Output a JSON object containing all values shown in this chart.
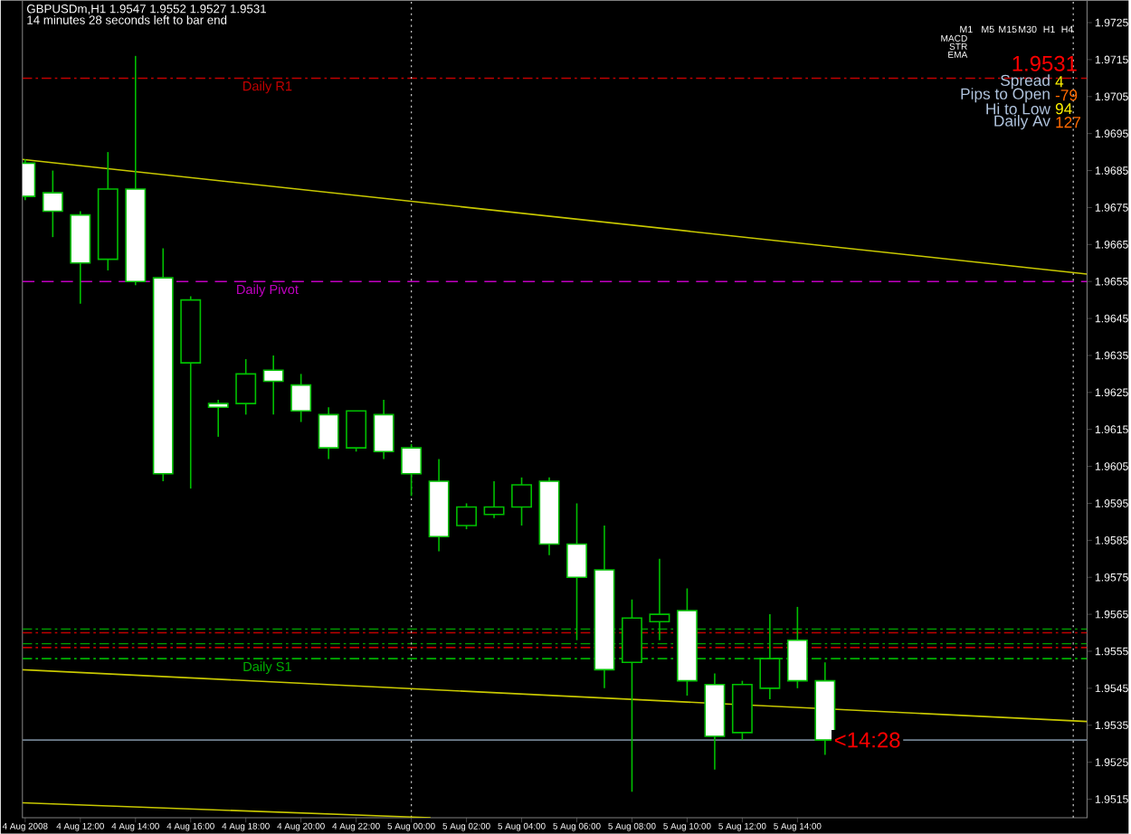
{
  "chart_data": {
    "type": "candlestick",
    "title": "GBPUSDm,H1  1.9547 1.9552 1.9527 1.9531",
    "subtitle": "14 minutes 28 seconds left to bar end",
    "color": "#00c000",
    "x": [
      "2008-08-04T10:00",
      "2008-08-04T11:00",
      "2008-08-04T12:00",
      "2008-08-04T13:00",
      "2008-08-04T14:00",
      "2008-08-04T15:00",
      "2008-08-04T16:00",
      "2008-08-04T17:00",
      "2008-08-04T18:00",
      "2008-08-04T19:00",
      "2008-08-04T20:00",
      "2008-08-04T21:00",
      "2008-08-04T22:00",
      "2008-08-04T23:00",
      "2008-08-05T00:00",
      "2008-08-05T01:00",
      "2008-08-05T02:00",
      "2008-08-05T03:00",
      "2008-08-05T04:00",
      "2008-08-05T05:00",
      "2008-08-05T06:00",
      "2008-08-05T07:00",
      "2008-08-05T08:00",
      "2008-08-05T09:00",
      "2008-08-05T10:00",
      "2008-08-05T11:00",
      "2008-08-05T12:00",
      "2008-08-05T13:00",
      "2008-08-05T14:00",
      "2008-08-05T15:00"
    ],
    "ohlc": [
      [
        1.9687,
        1.9688,
        1.9677,
        1.9678
      ],
      [
        1.9679,
        1.9685,
        1.9667,
        1.9674
      ],
      [
        1.9673,
        1.9674,
        1.9649,
        1.966
      ],
      [
        1.9661,
        1.969,
        1.9658,
        1.968
      ],
      [
        1.968,
        1.9716,
        1.9654,
        1.9655
      ],
      [
        1.9656,
        1.9664,
        1.9601,
        1.9603
      ],
      [
        1.9633,
        1.9651,
        1.9599,
        1.965
      ],
      [
        1.9622,
        1.9623,
        1.9613,
        1.9621
      ],
      [
        1.9622,
        1.9634,
        1.9619,
        1.963
      ],
      [
        1.9631,
        1.9635,
        1.9619,
        1.9628
      ],
      [
        1.9627,
        1.963,
        1.9617,
        1.962
      ],
      [
        1.9619,
        1.9621,
        1.9607,
        1.961
      ],
      [
        1.961,
        1.962,
        1.9609,
        1.962
      ],
      [
        1.9619,
        1.9623,
        1.9607,
        1.9609
      ],
      [
        1.961,
        1.9611,
        1.9597,
        1.9603
      ],
      [
        1.9601,
        1.9607,
        1.9582,
        1.9586
      ],
      [
        1.9589,
        1.9595,
        1.9588,
        1.9594
      ],
      [
        1.9592,
        1.9601,
        1.9591,
        1.9594
      ],
      [
        1.9594,
        1.9602,
        1.9589,
        1.96
      ],
      [
        1.9601,
        1.9602,
        1.9581,
        1.9584
      ],
      [
        1.9584,
        1.9595,
        1.9558,
        1.9575
      ],
      [
        1.9577,
        1.9589,
        1.9545,
        1.955
      ],
      [
        1.9552,
        1.9569,
        1.9517,
        1.9564
      ],
      [
        1.9563,
        1.958,
        1.9558,
        1.9565
      ],
      [
        1.9566,
        1.9572,
        1.9543,
        1.9547
      ],
      [
        1.9546,
        1.9549,
        1.9523,
        1.9532
      ],
      [
        1.9533,
        1.9547,
        1.9531,
        1.9546
      ],
      [
        1.9545,
        1.9565,
        1.9542,
        1.9553
      ],
      [
        1.9558,
        1.9567,
        1.9545,
        1.9547
      ],
      [
        1.9547,
        1.9552,
        1.9527,
        1.9531
      ]
    ],
    "series": [
      {
        "type": "line",
        "color": "#c8c800",
        "x": [
          "2008-08-04T09:54",
          "2008-08-06T00:30"
        ],
        "values": [
          1.9688,
          1.9657
        ]
      },
      {
        "type": "line",
        "color": "#c8c800",
        "x": [
          "2008-08-04T09:54",
          "2008-08-06T00:30"
        ],
        "values": [
          1.955,
          1.9536
        ]
      },
      {
        "type": "line",
        "color": "#c8c800",
        "x": [
          "2008-08-04T09:54",
          "2008-08-05T00:42"
        ],
        "values": [
          1.9514,
          1.951
        ]
      }
    ],
    "xlim": [
      "2008-08-04T09:54",
      "2008-08-06T00:30"
    ],
    "ylim": [
      1.951,
      1.9731
    ],
    "xticks": [
      {
        "value": "2008-08-04T10:00",
        "label": "4 Aug 2008"
      },
      {
        "value": "2008-08-04T12:00",
        "label": "4 Aug 12:00"
      },
      {
        "value": "2008-08-04T14:00",
        "label": "4 Aug 14:00"
      },
      {
        "value": "2008-08-04T16:00",
        "label": "4 Aug 16:00"
      },
      {
        "value": "2008-08-04T18:00",
        "label": "4 Aug 18:00"
      },
      {
        "value": "2008-08-04T20:00",
        "label": "4 Aug 20:00"
      },
      {
        "value": "2008-08-04T22:00",
        "label": "4 Aug 22:00"
      },
      {
        "value": "2008-08-05T00:00",
        "label": "5 Aug 00:00"
      },
      {
        "value": "2008-08-05T02:00",
        "label": "5 Aug 02:00"
      },
      {
        "value": "2008-08-05T04:00",
        "label": "5 Aug 04:00"
      },
      {
        "value": "2008-08-05T06:00",
        "label": "5 Aug 06:00"
      },
      {
        "value": "2008-08-05T08:00",
        "label": "5 Aug 08:00"
      },
      {
        "value": "2008-08-05T10:00",
        "label": "5 Aug 10:00"
      },
      {
        "value": "2008-08-05T12:00",
        "label": "5 Aug 12:00"
      },
      {
        "value": "2008-08-05T14:00",
        "label": "5 Aug 14:00"
      }
    ],
    "yticks": [
      1.9515,
      1.9525,
      1.9535,
      1.9545,
      1.9555,
      1.9565,
      1.9575,
      1.9585,
      1.9595,
      1.9605,
      1.9615,
      1.9625,
      1.9635,
      1.9645,
      1.9655,
      1.9665,
      1.9675,
      1.9685,
      1.9695,
      1.9705,
      1.9715,
      1.9725
    ],
    "ref_lines": [
      {
        "axis": "y",
        "value": 1.971,
        "label": "Daily R1",
        "color": "#c00000",
        "line_style": "dashdot"
      },
      {
        "axis": "y",
        "value": 1.9655,
        "label": "Daily Pivot",
        "color": "#c000c0",
        "line_style": "dashed"
      },
      {
        "axis": "y",
        "value": 1.9553,
        "label": "Daily S1",
        "color": "#00b000",
        "line_style": "dashdot"
      },
      {
        "axis": "y",
        "value": 1.9561,
        "color": "#00a000",
        "line_style": "dashdot"
      },
      {
        "axis": "y",
        "value": 1.956,
        "color": "#c00000",
        "line_style": "dashdot"
      },
      {
        "axis": "y",
        "value": 1.9557,
        "color": "#00a000",
        "line_style": "dashdot"
      },
      {
        "axis": "y",
        "value": 1.9556,
        "color": "#c00000",
        "line_style": "dashdot"
      },
      {
        "axis": "y",
        "value": 1.9531,
        "color": "#708090",
        "line_style": "solid"
      },
      {
        "axis": "x",
        "value": "2008-08-05T00:00",
        "color": "#c0c0c0",
        "line_style": "dotted"
      },
      {
        "axis": "x",
        "value": "2008-08-06T00:00",
        "color": "#c0c0c0",
        "line_style": "dotted"
      }
    ],
    "annotations": [
      "M1",
      "M5",
      "M15",
      "M30",
      "H1",
      "H4",
      "MACD",
      "STR",
      "EMA",
      "1.9531",
      "Spread",
      "4",
      "Pips to Open",
      "-79",
      "Hi to Low",
      "94",
      "Daily Av",
      "127",
      {
        "text": "<14:28",
        "x": "2008-08-05T15:00",
        "y": 1.9531
      }
    ]
  }
}
